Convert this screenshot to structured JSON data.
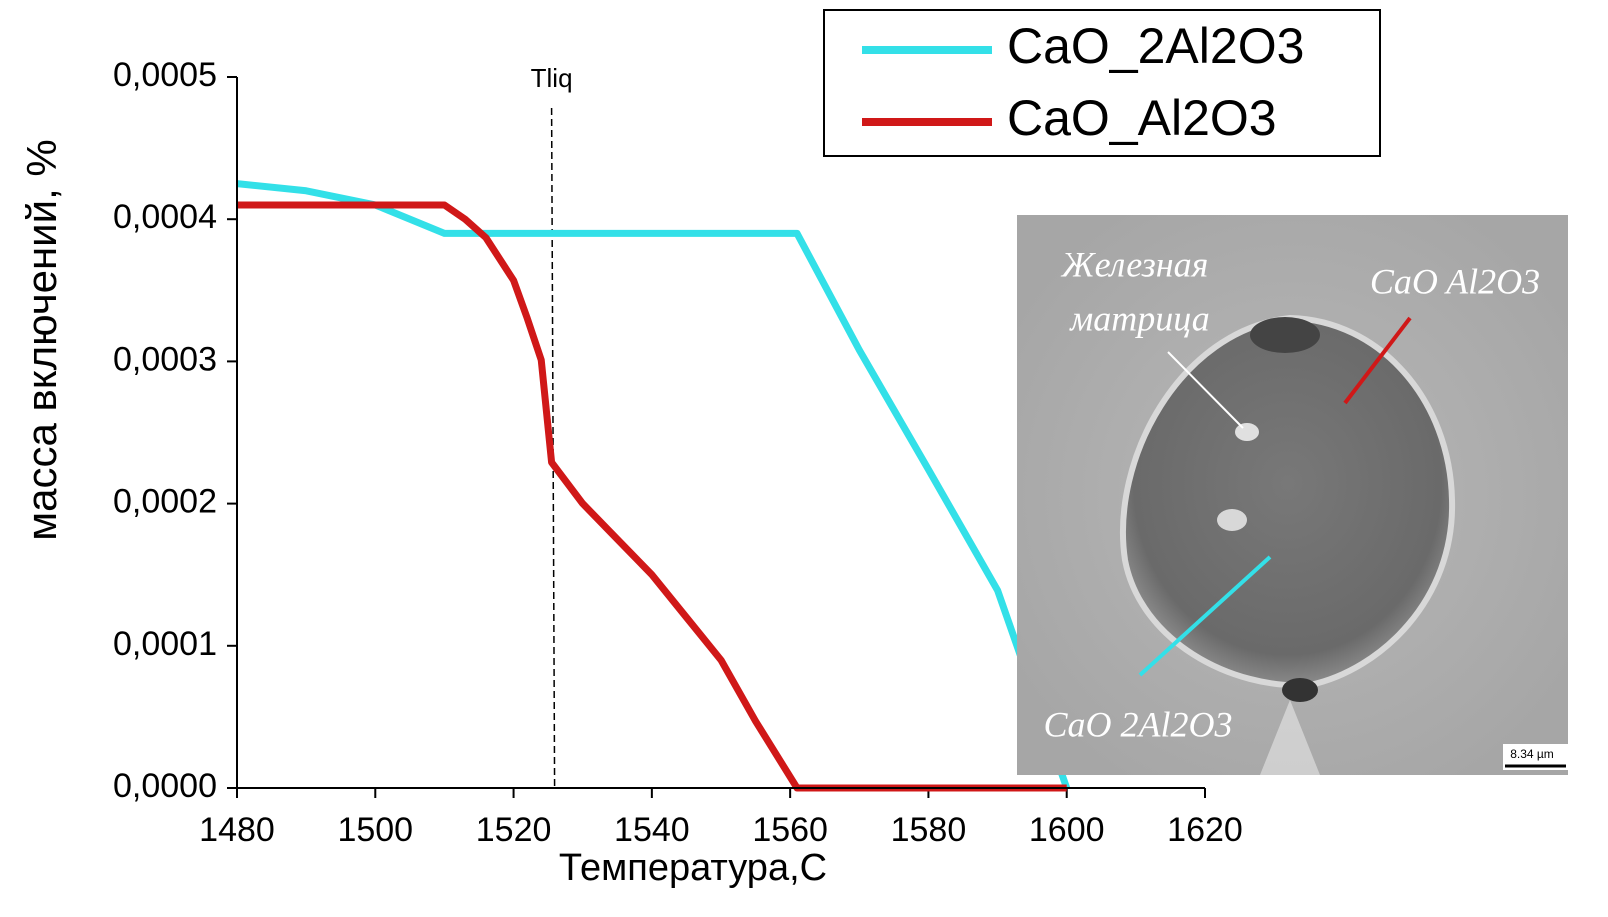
{
  "chart_data": {
    "type": "line",
    "xlabel": "Температура,C",
    "ylabel": "масса включений, %",
    "xlim": [
      1480,
      1620
    ],
    "xticks": [
      1480,
      1500,
      1520,
      1540,
      1560,
      1580,
      1600,
      1620
    ],
    "ylim": [
      0,
      0.0005
    ],
    "yticks": [
      {
        "value": 0,
        "label": "0,0000"
      },
      {
        "value": 0.0001,
        "label": "0,0001"
      },
      {
        "value": 0.0002,
        "label": "0,0002"
      },
      {
        "value": 0.0003,
        "label": "0,0003"
      },
      {
        "value": 0.0004,
        "label": "0,0004"
      },
      {
        "value": 0.0005,
        "label": "0,0005"
      }
    ],
    "legend_position": "upper right",
    "tliq": {
      "label": "Tliq",
      "x": 1525.5
    },
    "series": [
      {
        "name": "CaO_2Al2O3",
        "color": "#33e0e8",
        "x": [
          1480,
          1490,
          1500,
          1510,
          1561,
          1570,
          1580,
          1590,
          1600
        ],
        "values": [
          0.000425,
          0.00042,
          0.00041,
          0.00039,
          0.00039,
          0.000308,
          0.000224,
          0.000139,
          0
        ]
      },
      {
        "name": "CaO_Al2O3",
        "color": "#d01818",
        "x": [
          1480,
          1510,
          1513,
          1516,
          1520,
          1522,
          1524,
          1525.5,
          1530,
          1535,
          1540,
          1545,
          1550,
          1555,
          1561,
          1600
        ],
        "values": [
          0.00041,
          0.00041,
          0.0004,
          0.000387,
          0.000357,
          0.00033,
          0.000301,
          0.000229,
          0.0002,
          0.000175,
          0.00015,
          0.00012,
          9e-05,
          4.7e-05,
          0,
          0
        ]
      }
    ]
  },
  "inset": {
    "labels": [
      "Железная",
      "матрица",
      "CaO Al2O3",
      "CaO 2Al2O3"
    ],
    "scale_bar": "8.34 µm"
  }
}
